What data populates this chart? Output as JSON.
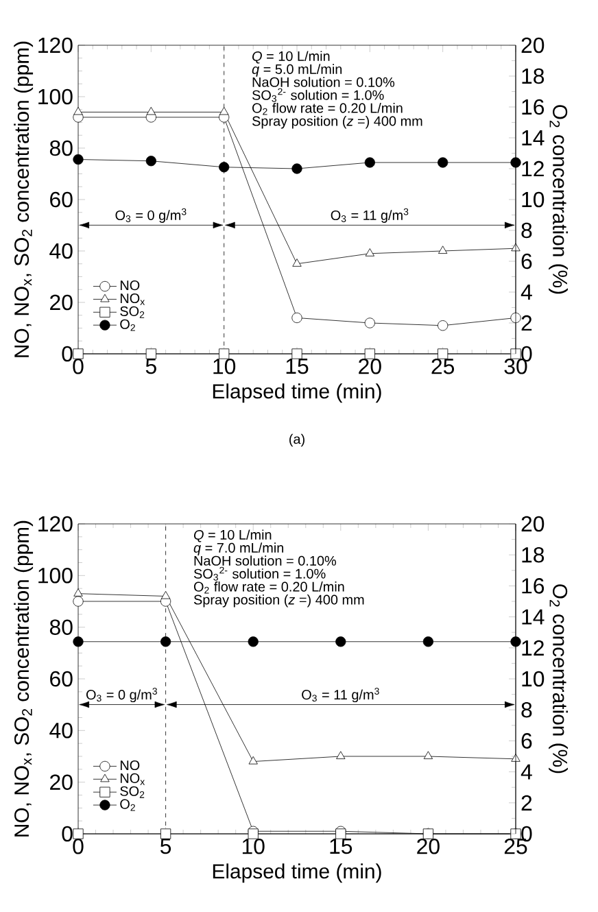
{
  "chart_data": [
    {
      "type": "line",
      "xlabel": "Elapsed time (min)",
      "ylabel": "NO, NO$_{x}$, SO$_{2}$ concentration (ppm)",
      "y2label": "O$_{2}$ concentration (%)",
      "x": [
        0,
        5,
        10,
        15,
        20,
        25,
        30
      ],
      "series": [
        {
          "name": "NO",
          "color": "#000000",
          "marker": "circle",
          "values": [
            92,
            92,
            92,
            14,
            12,
            11,
            14
          ]
        },
        {
          "name": "NO$_{x}$",
          "color": "#000000",
          "marker": "triangle",
          "values": [
            94,
            94,
            94,
            35,
            39,
            40,
            41
          ]
        },
        {
          "name": "SO$_{2}$",
          "color": "#000000",
          "marker": "square",
          "values": [
            0,
            0,
            0,
            0,
            0,
            0,
            0
          ]
        },
        {
          "name": "O$_{2}$",
          "color": "#000000",
          "marker": "circle",
          "axis": "y2",
          "values": [
            12.6,
            12.5,
            12.1,
            12.0,
            12.4,
            12.4,
            12.4
          ]
        }
      ],
      "xlim": [
        0,
        30
      ],
      "xticks": [
        0,
        5,
        10,
        15,
        20,
        25,
        30
      ],
      "ylim": [
        0,
        120
      ],
      "yticks": [
        0,
        20,
        40,
        60,
        80,
        100,
        120
      ],
      "y2lim": [
        0,
        20
      ],
      "y2ticks": [
        0,
        2,
        4,
        6,
        8,
        10,
        12,
        14,
        16,
        18,
        20
      ],
      "ref_lines": [
        {
          "axis": "x",
          "value": 10,
          "line_style": "dashed"
        }
      ],
      "annotations": [
        "*Q* = 10 L/min",
        "*q* = 5.0 mL/min",
        "NaOH solution = 0.10%",
        "SO$_{3}$$^{2-}$ solution = 1.0%",
        "O$_{2}$ flow rate = 0.20 L/min",
        "Spray position (*z* =) 400 mm",
        "O$_{3}$ = 0 g/m$^{3}$",
        "O$_{3}$ = 11 g/m$^{3}$",
        {
          "text": "(a)"
        }
      ],
      "legend": "bottom left",
      "line_style": "solid"
    },
    {
      "type": "line",
      "xlabel": "Elapsed time (min)",
      "ylabel": "NO, NO$_{x}$, SO$_{2}$ concentration (ppm)",
      "y2label": "O$_{2}$ concentration (%)",
      "x": [
        0,
        5,
        10,
        15,
        20,
        25
      ],
      "series": [
        {
          "name": "NO",
          "color": "#000000",
          "marker": "circle",
          "values": [
            90,
            90,
            1,
            1,
            0,
            0
          ]
        },
        {
          "name": "NO$_{x}$",
          "color": "#000000",
          "marker": "triangle",
          "values": [
            93,
            92,
            28,
            30,
            30,
            29
          ]
        },
        {
          "name": "SO$_{2}$",
          "color": "#000000",
          "marker": "square",
          "values": [
            0,
            0,
            0,
            0,
            0,
            0
          ]
        },
        {
          "name": "O$_{2}$",
          "color": "#000000",
          "marker": "circle",
          "axis": "y2",
          "values": [
            12.4,
            12.4,
            12.4,
            12.4,
            12.4,
            12.4
          ]
        }
      ],
      "xlim": [
        0,
        25
      ],
      "xticks": [
        0,
        5,
        10,
        15,
        20,
        25
      ],
      "ylim": [
        0,
        120
      ],
      "yticks": [
        0,
        20,
        40,
        60,
        80,
        100,
        120
      ],
      "y2lim": [
        0,
        20
      ],
      "y2ticks": [
        0,
        2,
        4,
        6,
        8,
        10,
        12,
        14,
        16,
        18,
        20
      ],
      "ref_lines": [
        {
          "axis": "x",
          "value": 5,
          "line_style": "dashed"
        }
      ],
      "annotations": [
        "*Q* = 10 L/min",
        "*q* = 7.0 mL/min",
        "NaOH solution = 0.10%",
        "SO$_{3}$$^{2-}$ solution = 1.0%",
        "O$_{2}$ flow rate = 0.20 L/min",
        "Spray position (*z* =) 400 mm",
        "O$_{3}$ = 0 g/m$^{3}$",
        "O$_{3}$ = 11 g/m$^{3}$"
      ],
      "legend": "bottom left",
      "line_style": "solid"
    }
  ]
}
